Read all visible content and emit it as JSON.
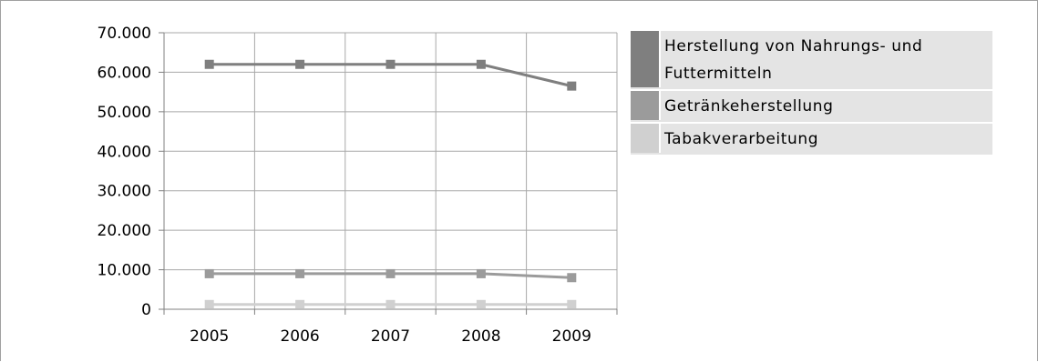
{
  "chart_data": {
    "type": "line",
    "categories": [
      "2005",
      "2006",
      "2007",
      "2008",
      "2009"
    ],
    "y_ticks": [
      "0",
      "10.000",
      "20.000",
      "30.000",
      "40.000",
      "50.000",
      "60.000",
      "70.000"
    ],
    "ylim": [
      0,
      70000
    ],
    "grid": true,
    "legend_position": "right",
    "series": [
      {
        "name": "Herstellung von Nahrungs- und Futtermitteln",
        "color": "#7f7f7f",
        "values": [
          62000,
          62000,
          62000,
          62000,
          56500
        ]
      },
      {
        "name": "Getränkeherstellung",
        "color": "#9b9b9b",
        "values": [
          9000,
          9000,
          9000,
          9000,
          8000
        ]
      },
      {
        "name": "Tabakverarbeitung",
        "color": "#d0d0d0",
        "values": [
          1200,
          1200,
          1200,
          1200,
          1200
        ]
      }
    ]
  }
}
